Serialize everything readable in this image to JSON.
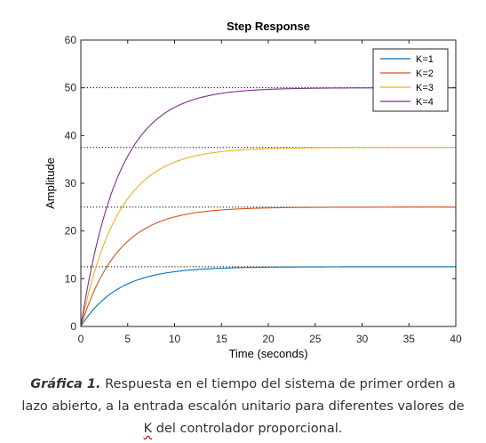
{
  "chart_data": {
    "type": "line",
    "title": "Step Response",
    "xlabel": "Time (seconds)",
    "ylabel": "Amplitude",
    "xlim": [
      0,
      40
    ],
    "ylim": [
      0,
      60
    ],
    "xticks": [
      0,
      5,
      10,
      15,
      20,
      25,
      30,
      35,
      40
    ],
    "yticks": [
      0,
      10,
      20,
      30,
      40,
      50,
      60
    ],
    "grid": false,
    "legend": "top-right",
    "time_constant": 4,
    "series": [
      {
        "name": "K=1",
        "color": "#0072BD",
        "final_value": 12.5
      },
      {
        "name": "K=2",
        "color": "#D95319",
        "final_value": 25
      },
      {
        "name": "K=3",
        "color": "#EDB120",
        "final_value": 37.5
      },
      {
        "name": "K=4",
        "color": "#7E2F8E",
        "final_value": 50
      }
    ],
    "steady_state_lines": [
      12.5,
      25,
      37.5,
      50
    ]
  },
  "caption": {
    "label": "Gráfica 1.",
    "text_before": " Respuesta en el tiempo del sistema de primer orden a lazo abierto, a la entrada escalón unitario para diferentes valores de ",
    "k_word": "K",
    "text_after": " del controlador proporcional."
  }
}
